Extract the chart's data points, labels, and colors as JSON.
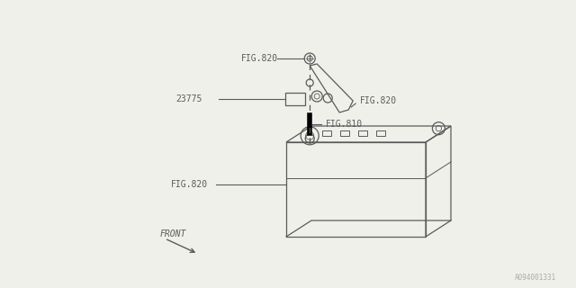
{
  "bg_color": "#f0f0eb",
  "line_color": "#5a5a5a",
  "watermark": "A094001331",
  "labels": {
    "fig820_top": "FIG.820",
    "fig820_right": "FIG.820",
    "fig810": "FIG.810",
    "fig820_bottom": "FIG.820",
    "part23775": "23775",
    "front": "FRONT"
  },
  "fig_size": [
    6.4,
    3.2
  ],
  "dpi": 100
}
